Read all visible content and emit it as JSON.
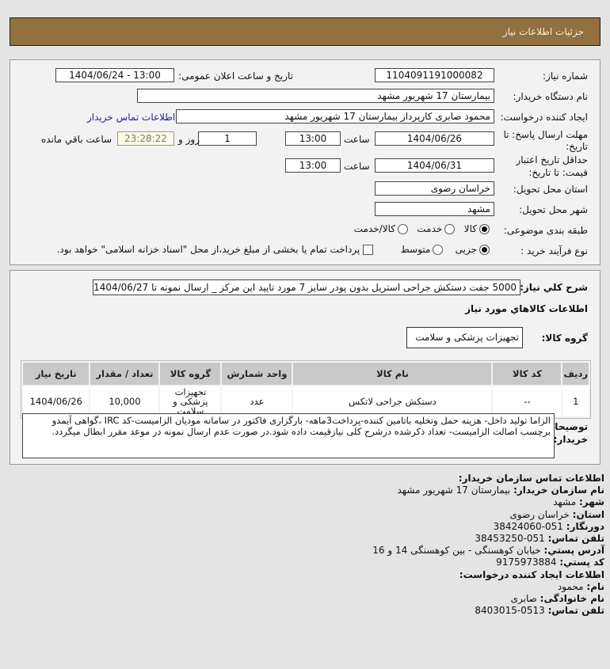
{
  "header": {
    "title": "جزئیات اطلاعات نیاز"
  },
  "form": {
    "need_number_label": "شماره نیاز:",
    "need_number": "1104091191000082",
    "announce_label": "تاریخ و ساعت اعلان عمومی:",
    "announce_value": "1404/06/24 - 13:00",
    "buyer_label": "نام دستگاه خریدار:",
    "buyer": "بیمارستان 17 شهریور مشهد",
    "creator_label": "ایجاد کننده درخواست:",
    "creator": "محمود صابری کارپرداز بیمارستان 17 شهریور مشهد",
    "contact_link": "اطلاعات تماس خریدار",
    "deadline_label_1": "مهلت ارسال پاسخ: تا",
    "deadline_label_2": "تاریخ:",
    "deadline_date": "1404/06/26",
    "time_label": "ساعت",
    "deadline_time": "13:00",
    "days": "1",
    "days_label": "روز و",
    "remaining": "23:28:22",
    "remaining_label": "ساعت باقي مانده",
    "validity_label_1": "حداقل تاریخ اعتبار",
    "validity_label_2": "قیمت: تا تاریخ:",
    "validity_date": "1404/06/31",
    "validity_time": "13:00",
    "province_label": "استان محل تحویل:",
    "province": "خراسان رضوی",
    "city_label": "شهر محل تحویل:",
    "city": "مشهد",
    "category_label": "طبقه بندی موضوعی:",
    "category_options": [
      "کالا",
      "خدمت",
      "کالا/خدمت"
    ],
    "category_selected": "کالا",
    "process_label": "نوع فرآیند خرید :",
    "process_options": [
      "جزیی",
      "متوسط"
    ],
    "process_selected": "جزیی",
    "payment_note": "پرداخت تمام یا بخشی از مبلغ خرید،از محل \"اسناد خزانه اسلامی\" خواهد بود."
  },
  "details": {
    "summary_label": "شرح کلي نياز:",
    "summary": "5000 جفت دستکش جراحی استریل بدون پودر سایز 7 مورد تایید این مرکز _ ارسال نمونه تا 1404/06/27",
    "goods_title": "اطلاعات کالاهاي مورد نياز",
    "group_label": "گروه کالا:",
    "group": "تجهیزات پزشکی و سلامت",
    "table": {
      "headers": [
        "ردیف",
        "کد کالا",
        "نام کالا",
        "واحد شمارش",
        "گروه کالا",
        "تعداد / مقدار",
        "تاریخ نیاز"
      ],
      "rows": [
        [
          "1",
          "--",
          "دستکش جراحی لاتکس",
          "عدد",
          "تجهیزات پزشکی و سلامت",
          "10,000",
          "1404/06/26"
        ]
      ]
    },
    "notes_label_1": "توضیحات",
    "notes_label_2": "خریدار:",
    "notes": "الزاما تولید داخل- هزینه حمل وتخلیه باتامین کننده-پرداخت3ماهه- بارگزاری فاکتور در سامانه مودیان الزامیست-کد IRC ،گواهی آیمدو برچسب اصالت الزامیست- تعداد ذکرشده درشرح کلی نیازقیمت داده شود.در صورت عدم ارسال نمونه در موعد مقرر ابطال میگردد."
  },
  "contact": {
    "org_title": "اطلاعات تماس سازمان خریدار:",
    "lines": [
      {
        "k": "نام سازمان خریدار:",
        "v": "بیمارستان 17 شهریور مشهد"
      },
      {
        "k": "شهر:",
        "v": "مشهد"
      },
      {
        "k": "استان:",
        "v": "خراسان رضوی"
      },
      {
        "k": "دورنگار:",
        "v": "051-38424060"
      },
      {
        "k": "تلفن تماس:",
        "v": "051-38453250"
      },
      {
        "k": "آدرس پستي:",
        "v": "خیابان کوهسنگی - بین کوهسنگی 14 و 16"
      },
      {
        "k": "کد پستي:",
        "v": "9175973884"
      }
    ],
    "creator_title": "اطلاعات ایجاد کننده درخواست:",
    "creator_lines": [
      {
        "k": "نام:",
        "v": "محمود"
      },
      {
        "k": "نام خانوادگی:",
        "v": "صابری"
      },
      {
        "k": "تلفن تماس:",
        "v": "0513-8403015"
      }
    ]
  }
}
